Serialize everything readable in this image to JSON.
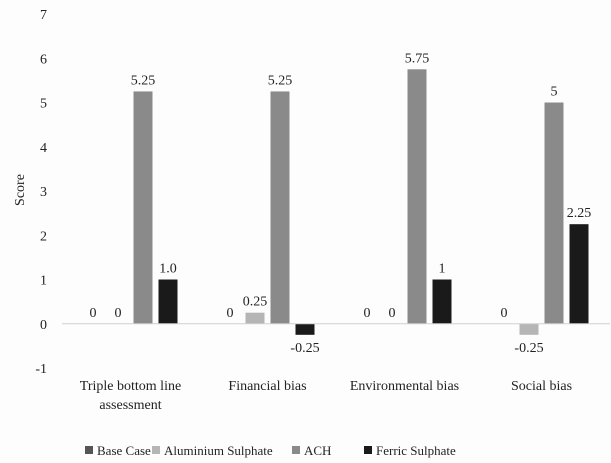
{
  "chart_data": {
    "type": "bar",
    "ylabel": "Score",
    "xlabel": "",
    "ylim": [
      -1,
      7
    ],
    "y_ticks": [
      "-1",
      "0",
      "1",
      "2",
      "3",
      "4",
      "5",
      "6",
      "7"
    ],
    "grid": false,
    "legend_position": "bottom",
    "categories": [
      [
        "Triple bottom line",
        "assessment"
      ],
      [
        "Financial bias"
      ],
      [
        "Environmental bias"
      ],
      [
        "Social bias"
      ]
    ],
    "series": [
      {
        "name": "Base Case",
        "color": "#555555",
        "values": [
          0,
          0,
          0,
          0
        ],
        "labels": [
          "0",
          "0",
          "0",
          "0"
        ]
      },
      {
        "name": "Aluminium Sulphate",
        "color": "#b5b5b5",
        "values": [
          0,
          0.25,
          0,
          -0.25
        ],
        "labels": [
          "0",
          "0.25",
          "0",
          "-0.25"
        ]
      },
      {
        "name": "ACH",
        "color": "#8a8a8a",
        "values": [
          5.25,
          5.25,
          5.75,
          5
        ],
        "labels": [
          "5.25",
          "5.25",
          "5.75",
          "5"
        ]
      },
      {
        "name": "Ferric Sulphate",
        "color": "#1a1a1a",
        "values": [
          1,
          -0.25,
          1,
          2.25
        ],
        "labels": [
          "1.0",
          "-0.25",
          "1",
          "2.25"
        ]
      }
    ]
  }
}
